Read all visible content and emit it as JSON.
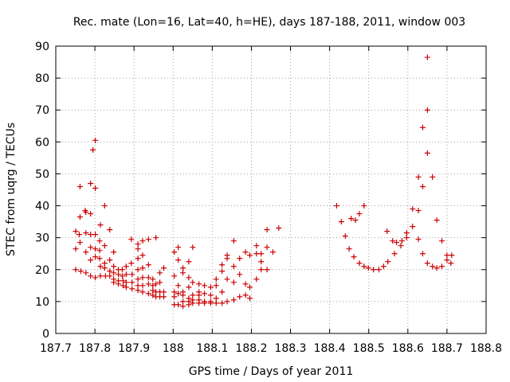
{
  "chart_data": {
    "type": "scatter",
    "title": "Rec. mate (Lon=16, Lat=40, h=HE), days 187-188, 2011, window 003",
    "xlabel": "GPS time / Days of year 2011",
    "ylabel": "STEC from uqrg / TECUs",
    "xlim": [
      187.7,
      188.8
    ],
    "ylim": [
      0,
      90
    ],
    "xticks": [
      187.7,
      187.8,
      187.9,
      188,
      188.1,
      188.2,
      188.3,
      188.4,
      188.5,
      188.6,
      188.7,
      188.8
    ],
    "xtick_labels": [
      "187.7",
      "187.8",
      "187.9",
      "188",
      "188.1",
      "188.2",
      "188.3",
      "188.4",
      "188.5",
      "188.6",
      "188.7",
      "188.8"
    ],
    "yticks": [
      0,
      10,
      20,
      30,
      40,
      50,
      60,
      70,
      80,
      90
    ],
    "ytick_labels": [
      "0",
      "10",
      "20",
      "30",
      "40",
      "50",
      "60",
      "70",
      "80",
      "90"
    ],
    "marker": "+",
    "color": "#cc0000",
    "series": [
      {
        "name": "STEC",
        "points": [
          [
            187.751,
            20
          ],
          [
            187.751,
            26.5
          ],
          [
            187.751,
            32
          ],
          [
            187.76,
            31
          ],
          [
            187.762,
            46
          ],
          [
            187.762,
            36.5
          ],
          [
            187.762,
            28.5
          ],
          [
            187.764,
            19.5
          ],
          [
            187.775,
            38.5
          ],
          [
            187.777,
            38
          ],
          [
            187.777,
            31.5
          ],
          [
            187.777,
            25.5
          ],
          [
            187.777,
            19
          ],
          [
            187.789,
            47
          ],
          [
            187.789,
            37.5
          ],
          [
            187.789,
            31
          ],
          [
            187.789,
            27
          ],
          [
            187.789,
            23
          ],
          [
            187.789,
            18
          ],
          [
            187.795,
            57.5
          ],
          [
            187.801,
            60.5
          ],
          [
            187.801,
            45.5
          ],
          [
            187.801,
            31
          ],
          [
            187.801,
            26.5
          ],
          [
            187.801,
            24
          ],
          [
            187.801,
            17.5
          ],
          [
            187.814,
            34
          ],
          [
            187.812,
            29
          ],
          [
            187.812,
            26
          ],
          [
            187.812,
            23.5
          ],
          [
            187.814,
            21
          ],
          [
            187.814,
            18
          ],
          [
            187.825,
            40
          ],
          [
            187.825,
            27.5
          ],
          [
            187.825,
            22
          ],
          [
            187.825,
            20.5
          ],
          [
            187.827,
            18
          ],
          [
            187.838,
            32.5
          ],
          [
            187.838,
            23
          ],
          [
            187.838,
            19.5
          ],
          [
            187.838,
            18
          ],
          [
            187.848,
            25.5
          ],
          [
            187.848,
            21
          ],
          [
            187.848,
            19
          ],
          [
            187.848,
            17
          ],
          [
            187.848,
            16
          ],
          [
            187.86,
            20
          ],
          [
            187.86,
            18.5
          ],
          [
            187.86,
            16.5
          ],
          [
            187.86,
            15.5
          ],
          [
            187.87,
            20
          ],
          [
            187.87,
            18
          ],
          [
            187.872,
            16.5
          ],
          [
            187.872,
            15
          ],
          [
            187.88,
            21
          ],
          [
            187.88,
            18.5
          ],
          [
            187.88,
            16
          ],
          [
            187.88,
            14.5
          ],
          [
            187.893,
            29.5
          ],
          [
            187.893,
            22
          ],
          [
            187.895,
            18.5
          ],
          [
            187.895,
            16
          ],
          [
            187.895,
            14
          ],
          [
            187.91,
            28
          ],
          [
            187.91,
            26.5
          ],
          [
            187.91,
            23.5
          ],
          [
            187.91,
            20
          ],
          [
            187.91,
            17
          ],
          [
            187.91,
            15
          ],
          [
            187.91,
            13.5
          ],
          [
            187.922,
            29
          ],
          [
            187.922,
            24.5
          ],
          [
            187.922,
            20.5
          ],
          [
            187.922,
            17.5
          ],
          [
            187.922,
            15
          ],
          [
            187.922,
            13
          ],
          [
            187.937,
            29.5
          ],
          [
            187.937,
            21.5
          ],
          [
            187.937,
            17.5
          ],
          [
            187.937,
            15.5
          ],
          [
            187.937,
            12.5
          ],
          [
            187.948,
            17
          ],
          [
            187.948,
            15
          ],
          [
            187.948,
            13.5
          ],
          [
            187.948,
            12
          ],
          [
            187.956,
            30
          ],
          [
            187.956,
            15.5
          ],
          [
            187.956,
            13
          ],
          [
            187.956,
            11.5
          ],
          [
            187.966,
            19
          ],
          [
            187.966,
            16
          ],
          [
            187.966,
            13
          ],
          [
            187.966,
            11.5
          ],
          [
            187.976,
            20.5
          ],
          [
            187.976,
            13
          ],
          [
            187.976,
            11.5
          ],
          [
            188.003,
            25.5
          ],
          [
            188.003,
            18
          ],
          [
            188.003,
            13
          ],
          [
            188.003,
            11.5
          ],
          [
            188.003,
            9
          ],
          [
            188.013,
            27
          ],
          [
            188.013,
            23
          ],
          [
            188.013,
            15
          ],
          [
            188.013,
            12.5
          ],
          [
            188.013,
            9
          ],
          [
            188.025,
            20.5
          ],
          [
            188.025,
            19
          ],
          [
            188.025,
            13
          ],
          [
            188.025,
            12
          ],
          [
            188.025,
            10
          ],
          [
            188.025,
            8.5
          ],
          [
            188.04,
            22.5
          ],
          [
            188.04,
            17.5
          ],
          [
            188.04,
            14.5
          ],
          [
            188.04,
            11
          ],
          [
            188.04,
            10
          ],
          [
            188.04,
            9
          ],
          [
            188.05,
            27
          ],
          [
            188.05,
            16
          ],
          [
            188.05,
            12
          ],
          [
            188.05,
            10.5
          ],
          [
            188.05,
            9.5
          ],
          [
            188.066,
            15.5
          ],
          [
            188.066,
            13
          ],
          [
            188.066,
            12
          ],
          [
            188.066,
            10.5
          ],
          [
            188.066,
            9.5
          ],
          [
            188.08,
            15
          ],
          [
            188.08,
            12.5
          ],
          [
            188.08,
            10
          ],
          [
            188.08,
            9.5
          ],
          [
            188.096,
            14.5
          ],
          [
            188.096,
            12
          ],
          [
            188.096,
            10
          ],
          [
            188.096,
            9.5
          ],
          [
            188.11,
            17
          ],
          [
            188.11,
            15
          ],
          [
            188.11,
            11
          ],
          [
            188.11,
            9.5
          ],
          [
            188.125,
            21.5
          ],
          [
            188.125,
            19.5
          ],
          [
            188.125,
            13
          ],
          [
            188.125,
            9.5
          ],
          [
            188.138,
            24.5
          ],
          [
            188.138,
            23.5
          ],
          [
            188.138,
            17
          ],
          [
            188.138,
            10
          ],
          [
            188.155,
            29
          ],
          [
            188.155,
            21
          ],
          [
            188.155,
            16
          ],
          [
            188.155,
            10.5
          ],
          [
            188.17,
            23.5
          ],
          [
            188.17,
            18.5
          ],
          [
            188.17,
            11.5
          ],
          [
            188.185,
            25.5
          ],
          [
            188.185,
            15.5
          ],
          [
            188.185,
            12
          ],
          [
            188.196,
            24.5
          ],
          [
            188.196,
            14.5
          ],
          [
            188.196,
            11
          ],
          [
            188.213,
            27.5
          ],
          [
            188.213,
            25
          ],
          [
            188.213,
            17
          ],
          [
            188.225,
            25
          ],
          [
            188.225,
            22.5
          ],
          [
            188.225,
            20
          ],
          [
            188.24,
            32.5
          ],
          [
            188.24,
            27
          ],
          [
            188.24,
            20
          ],
          [
            188.255,
            25.5
          ],
          [
            188.27,
            33
          ],
          [
            188.418,
            40
          ],
          [
            188.43,
            35
          ],
          [
            188.44,
            30.5
          ],
          [
            188.45,
            26.5
          ],
          [
            188.455,
            36
          ],
          [
            188.462,
            24
          ],
          [
            188.466,
            35.5
          ],
          [
            188.476,
            37.5
          ],
          [
            188.476,
            22
          ],
          [
            188.488,
            40
          ],
          [
            188.488,
            21
          ],
          [
            188.499,
            20.5
          ],
          [
            188.512,
            20
          ],
          [
            188.526,
            20
          ],
          [
            188.538,
            21
          ],
          [
            188.547,
            32
          ],
          [
            188.549,
            22.5
          ],
          [
            188.561,
            29
          ],
          [
            188.566,
            25
          ],
          [
            188.571,
            28.5
          ],
          [
            188.582,
            27.5
          ],
          [
            188.585,
            29
          ],
          [
            188.597,
            31.5
          ],
          [
            188.597,
            30
          ],
          [
            188.612,
            39
          ],
          [
            188.612,
            33.5
          ],
          [
            188.627,
            49
          ],
          [
            188.627,
            38.5
          ],
          [
            188.627,
            29.5
          ],
          [
            188.638,
            64.5
          ],
          [
            188.638,
            46
          ],
          [
            188.638,
            25
          ],
          [
            188.65,
            86.5
          ],
          [
            188.65,
            70
          ],
          [
            188.65,
            56.5
          ],
          [
            188.65,
            22
          ],
          [
            188.663,
            49
          ],
          [
            188.663,
            21
          ],
          [
            188.674,
            35.5
          ],
          [
            188.674,
            20.5
          ],
          [
            188.687,
            29
          ],
          [
            188.687,
            21
          ],
          [
            188.7,
            24.5
          ],
          [
            188.7,
            23
          ],
          [
            188.71,
            22
          ],
          [
            188.712,
            24.5
          ]
        ]
      }
    ]
  }
}
